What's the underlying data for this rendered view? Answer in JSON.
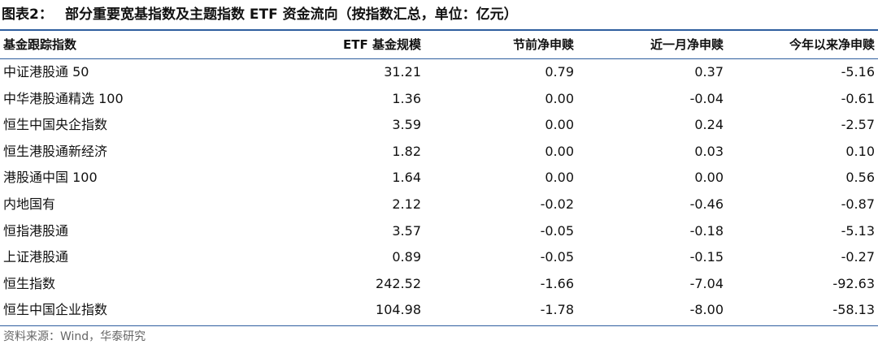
{
  "header": {
    "label": "图表2：",
    "title": "部分重要宽基指数及主题指数 ETF 资金流向（按指数汇总，单位：亿元）"
  },
  "table": {
    "columns": [
      "基金跟踪指数",
      "ETF 基金规模",
      "节前净申赎",
      "近一月净申赎",
      "今年以来净申赎"
    ],
    "rows": [
      [
        "中证港股通 50",
        "31.21",
        "0.79",
        "0.37",
        "-5.16"
      ],
      [
        "中华港股通精选 100",
        "1.36",
        "0.00",
        "-0.04",
        "-0.61"
      ],
      [
        "恒生中国央企指数",
        "3.59",
        "0.00",
        "0.24",
        "-2.57"
      ],
      [
        "恒生港股通新经济",
        "1.82",
        "0.00",
        "0.03",
        "0.10"
      ],
      [
        "港股通中国 100",
        "1.64",
        "0.00",
        "0.00",
        "0.56"
      ],
      [
        "内地国有",
        "2.12",
        "-0.02",
        "-0.46",
        "-0.87"
      ],
      [
        "恒指港股通",
        "3.57",
        "-0.05",
        "-0.18",
        "-5.13"
      ],
      [
        "上证港股通",
        "0.89",
        "-0.05",
        "-0.15",
        "-0.27"
      ],
      [
        "恒生指数",
        "242.52",
        "-1.66",
        "-7.04",
        "-92.63"
      ],
      [
        "恒生中国企业指数",
        "104.98",
        "-1.78",
        "-8.00",
        "-58.13"
      ]
    ]
  },
  "footer": {
    "source": "资料来源：Wind，华泰研究"
  }
}
